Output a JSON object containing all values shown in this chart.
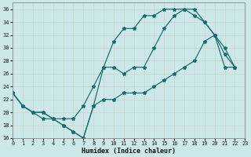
{
  "xlabel": "Humidex (Indice chaleur)",
  "xlim": [
    0,
    23
  ],
  "ylim": [
    16,
    37
  ],
  "yticks": [
    16,
    18,
    20,
    22,
    24,
    26,
    28,
    30,
    32,
    34,
    36
  ],
  "xticks": [
    0,
    1,
    2,
    3,
    4,
    5,
    6,
    7,
    8,
    9,
    10,
    11,
    12,
    13,
    14,
    15,
    16,
    17,
    18,
    19,
    20,
    21,
    22,
    23
  ],
  "bg_color": "#cce8e8",
  "line_color": "#1a6b6b",
  "grid_color": "#b8d8d8",
  "curve1_x": [
    0,
    1,
    2,
    3,
    4,
    5,
    6,
    7,
    8,
    9,
    10,
    11,
    12,
    13,
    14,
    15,
    16,
    17,
    18,
    19,
    20,
    21,
    22
  ],
  "curve1_y": [
    23,
    21,
    20,
    19,
    19,
    18,
    17,
    16,
    21,
    27,
    31,
    33,
    33,
    35,
    35,
    36,
    36,
    36,
    35,
    34,
    32,
    29,
    27
  ],
  "curve2_x": [
    0,
    1,
    2,
    3,
    4,
    5,
    6,
    7,
    8,
    9,
    10,
    11,
    12,
    13,
    14,
    15,
    16,
    17,
    18,
    19,
    20,
    21,
    22
  ],
  "curve2_y": [
    23,
    21,
    20,
    20,
    19,
    19,
    19,
    21,
    24,
    27,
    27,
    26,
    27,
    27,
    30,
    33,
    35,
    36,
    36,
    34,
    32,
    30,
    27
  ],
  "curve3_x": [
    0,
    1,
    2,
    3,
    4,
    5,
    6,
    7,
    8,
    9,
    10,
    11,
    12,
    13,
    14,
    15,
    16,
    17,
    18,
    19,
    20,
    21,
    22
  ],
  "curve3_y": [
    23,
    21,
    20,
    20,
    19,
    18,
    17,
    16,
    21,
    22,
    22,
    23,
    23,
    23,
    24,
    25,
    26,
    27,
    28,
    31,
    32,
    27,
    27
  ]
}
